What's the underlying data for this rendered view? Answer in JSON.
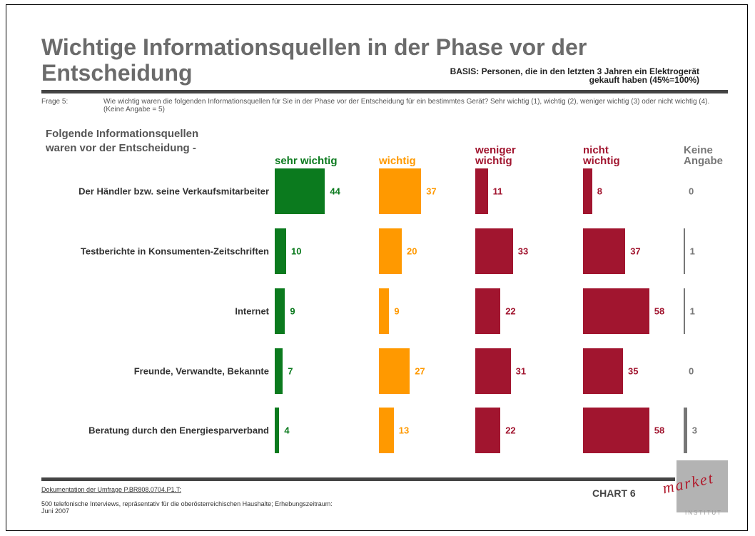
{
  "chart_data": {
    "type": "bar",
    "title": "Wichtige Informationsquellen in der Phase vor der Entscheidung",
    "basis": "BASIS: Personen, die in den letzten 3 Jahren ein Elektrogerät gekauft haben (45%=100%)",
    "question_label": "Frage 5:",
    "question": "Wie wichtig waren die folgenden Informationsquellen für Sie in der Phase vor der Entscheidung für ein bestimmtes Gerät? Sehr wichtig (1), wichtig (2), weniger wichtig (3) oder nicht wichtig (4). (Keine Angabe = 5)",
    "subtitle": "Folgende Informationsquellen waren vor der Entscheidung -",
    "categories": [
      "Der Händler bzw. seine Verkaufsmitarbeiter",
      "Testberichte in Konsumenten-Zeitschriften",
      "Internet",
      "Freunde, Verwandte, Bekannte",
      "Beratung durch den Energiesparverband"
    ],
    "series": [
      {
        "name": "sehr wichtig",
        "color": "#0b7a1e",
        "values": [
          44,
          10,
          9,
          7,
          4
        ]
      },
      {
        "name": "wichtig",
        "color": "#ff9900",
        "values": [
          37,
          20,
          9,
          27,
          13
        ]
      },
      {
        "name": "weniger wichtig",
        "color": "#a1152f",
        "values": [
          11,
          33,
          22,
          31,
          22
        ]
      },
      {
        "name": "nicht wichtig",
        "color": "#a1152f",
        "values": [
          8,
          37,
          58,
          35,
          58
        ]
      },
      {
        "name": "Keine Angabe",
        "color": "#777777",
        "values": [
          0,
          1,
          1,
          0,
          3
        ]
      }
    ],
    "footer_link": "Dokumentation der Umfrage P.BR808.0704.P1.T:",
    "footer_text": "500 telefonische Interviews, repräsentativ für die oberösterreichischen Haushalte; Erhebungszeitraum: Juni 2007",
    "chart_number": "CHART 6",
    "logo_text": "market",
    "logo_subtext": "INSTITUT"
  }
}
